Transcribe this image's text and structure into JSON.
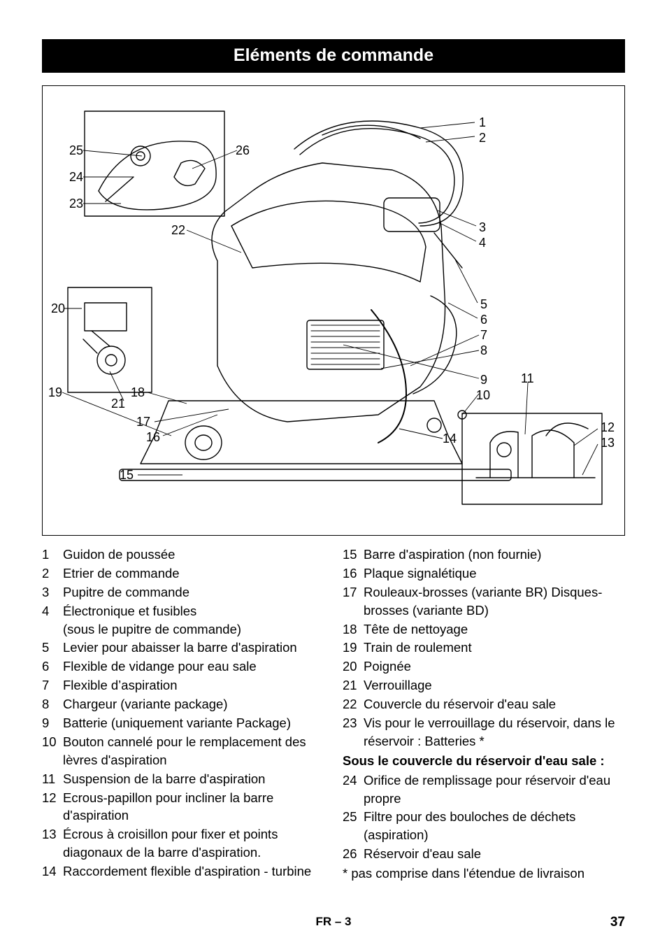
{
  "title": "Eléments de commande",
  "callouts": {
    "n1": "1",
    "n2": "2",
    "n3": "3",
    "n4": "4",
    "n5": "5",
    "n6": "6",
    "n7": "7",
    "n8": "8",
    "n9": "9",
    "n10": "10",
    "n11": "11",
    "n12": "12",
    "n13": "13",
    "n14": "14",
    "n15": "15",
    "n16": "16",
    "n17": "17",
    "n18": "18",
    "n19": "19",
    "n20": "20",
    "n21": "21",
    "n22": "22",
    "n23": "23",
    "n24": "24",
    "n25": "25",
    "n26": "26"
  },
  "left_items": [
    {
      "n": "1",
      "t": "Guidon de poussée"
    },
    {
      "n": "2",
      "t": "Etrier de commande"
    },
    {
      "n": "3",
      "t": "Pupitre de commande"
    },
    {
      "n": "4",
      "t": "Électronique et fusibles\n(sous le pupitre de commande)"
    },
    {
      "n": "5",
      "t": "Levier pour abaisser la barre d'aspiration"
    },
    {
      "n": "6",
      "t": "Flexible de vidange pour eau sale"
    },
    {
      "n": "7",
      "t": "Flexible d’aspiration"
    },
    {
      "n": "8",
      "t": "Chargeur (variante package)"
    },
    {
      "n": "9",
      "t": "Batterie (uniquement variante Package)"
    },
    {
      "n": "10",
      "t": "Bouton cannelé pour le remplacement des lèvres d'aspiration"
    },
    {
      "n": "11",
      "t": "Suspension de la barre d'aspiration"
    },
    {
      "n": "12",
      "t": "Ecrous-papillon pour incliner la barre d'aspiration"
    },
    {
      "n": "13",
      "t": "Écrous à croisillon pour fixer et points diagonaux de la barre d'aspiration."
    },
    {
      "n": "14",
      "t": "Raccordement flexible d'aspiration - turbine"
    }
  ],
  "right_items": [
    {
      "n": "15",
      "t": "Barre d'aspiration (non fournie)"
    },
    {
      "n": "16",
      "t": "Plaque signalétique"
    },
    {
      "n": "17",
      "t": "Rouleaux-brosses (variante BR) Disques-brosses (variante BD)"
    },
    {
      "n": "18",
      "t": "Tête de nettoyage"
    },
    {
      "n": "19",
      "t": "Train de roulement"
    },
    {
      "n": "20",
      "t": "Poignée"
    },
    {
      "n": "21",
      "t": "Verrouillage"
    },
    {
      "n": "22",
      "t": "Couvercle du réservoir d'eau sale"
    },
    {
      "n": "23",
      "t": "Vis pour le verrouillage du réservoir, dans le réservoir : Batteries *"
    }
  ],
  "subhead": "Sous le couvercle du réservoir d'eau sale :",
  "right_items2": [
    {
      "n": "24",
      "t": "Orifice de remplissage pour réservoir d'eau propre"
    },
    {
      "n": "25",
      "t": "Filtre pour des bouloches de déchets (aspiration)"
    },
    {
      "n": "26",
      "t": "Réservoir d'eau sale"
    }
  ],
  "footnote": "* pas comprise dans l'étendue de livraison",
  "footer": "FR – 3",
  "pagenum": "37",
  "diagram": {
    "stroke": "#000000",
    "stroke_width": 1.3,
    "fill": "#ffffff",
    "leader_width": 0.9
  }
}
